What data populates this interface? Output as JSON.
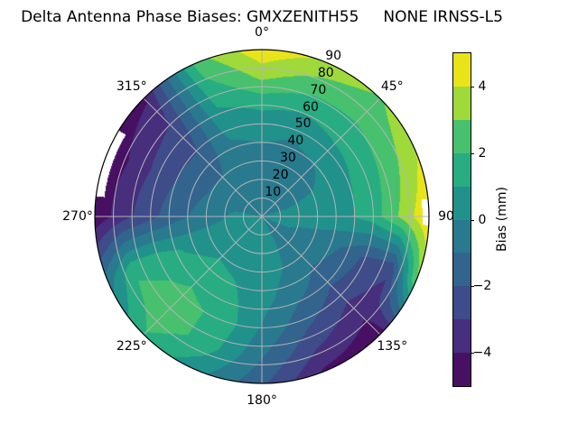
{
  "chart_data": {
    "type": "heatmap",
    "projection": "polar",
    "title": "Delta Antenna Phase Biases: GMXZENITH55     NONE IRNSS-L5",
    "azimuth_labels": [
      {
        "az": 0,
        "label": "0°"
      },
      {
        "az": 45,
        "label": "45°"
      },
      {
        "az": 90,
        "label": "90"
      },
      {
        "az": 135,
        "label": "135°"
      },
      {
        "az": 180,
        "label": "180°"
      },
      {
        "az": 225,
        "label": "225°"
      },
      {
        "az": 270,
        "label": "270°"
      },
      {
        "az": 315,
        "label": "315°"
      }
    ],
    "radial_ticks": [
      {
        "r": 10,
        "label": "10"
      },
      {
        "r": 20,
        "label": "20"
      },
      {
        "r": 30,
        "label": "30"
      },
      {
        "r": 40,
        "label": "40"
      },
      {
        "r": 50,
        "label": "50"
      },
      {
        "r": 60,
        "label": "60"
      },
      {
        "r": 70,
        "label": "70"
      },
      {
        "r": 80,
        "label": "80"
      },
      {
        "r": 90,
        "label": "90"
      }
    ],
    "colorbar": {
      "label": "Bias (mm)",
      "range": [
        -5,
        5
      ],
      "ticks": [
        {
          "value": 4,
          "label": "4"
        },
        {
          "value": 2,
          "label": "2"
        },
        {
          "value": 0,
          "label": "0"
        },
        {
          "value": -2,
          "label": "−2"
        },
        {
          "value": -4,
          "label": "−4"
        }
      ],
      "band_colors": [
        "#471063",
        "#472f7d",
        "#3e4c8a",
        "#32648e",
        "#297a8e",
        "#21918c",
        "#27ad81",
        "#48c16e",
        "#9fda3a",
        "#e8e419"
      ]
    },
    "grid": {
      "azimuth_deg": [
        0,
        22.5,
        45,
        67.5,
        90,
        112.5,
        135,
        157.5,
        180,
        202.5,
        225,
        247.5,
        270,
        292.5,
        315,
        337.5
      ],
      "zenith_deg": [
        0,
        15,
        30,
        45,
        60,
        75,
        90
      ],
      "bias_mm": [
        [
          0.0,
          -0.4,
          -0.3,
          0.2,
          1.2,
          3.2,
          4.8
        ],
        [
          0.0,
          -0.5,
          -0.4,
          0.0,
          1.0,
          2.4,
          3.8
        ],
        [
          0.0,
          -0.5,
          -0.5,
          0.3,
          1.3,
          2.2,
          2.9
        ],
        [
          0.0,
          -0.1,
          0.1,
          0.7,
          1.4,
          2.6,
          4.0
        ],
        [
          0.0,
          0.3,
          0.6,
          0.8,
          1.5,
          3.2,
          5.0
        ],
        [
          0.0,
          0.0,
          -0.4,
          -1.0,
          -2.2,
          -2.8,
          3.0
        ],
        [
          0.0,
          -0.3,
          -0.6,
          -1.4,
          -2.6,
          -3.8,
          -4.7
        ],
        [
          0.0,
          0.1,
          0.0,
          -0.6,
          -1.6,
          -2.8,
          -4.2
        ],
        [
          0.0,
          0.4,
          0.6,
          0.4,
          -0.1,
          -0.9,
          -1.8
        ],
        [
          0.0,
          0.5,
          0.8,
          1.2,
          1.8,
          1.5,
          0.3
        ],
        [
          0.0,
          0.4,
          0.9,
          1.6,
          2.3,
          2.7,
          1.9
        ],
        [
          0.0,
          0.3,
          0.5,
          0.9,
          1.6,
          1.8,
          -0.6
        ],
        [
          0.0,
          0.2,
          -0.5,
          -1.3,
          -2.3,
          -3.4,
          -4.8
        ],
        [
          0.0,
          -0.2,
          -0.9,
          -1.7,
          -2.6,
          -3.8,
          -4.9
        ],
        [
          0.0,
          -0.4,
          -1.0,
          -1.8,
          -2.6,
          -3.2,
          -4.2
        ],
        [
          0.0,
          -0.4,
          -0.4,
          0.0,
          0.8,
          1.6,
          2.6
        ]
      ]
    },
    "no_data_sectors": [
      {
        "az_start": 277,
        "az_end": 301,
        "zen_start": 85.5
      },
      {
        "az_start": 84,
        "az_end": 93,
        "zen_start": 86.5
      }
    ]
  }
}
